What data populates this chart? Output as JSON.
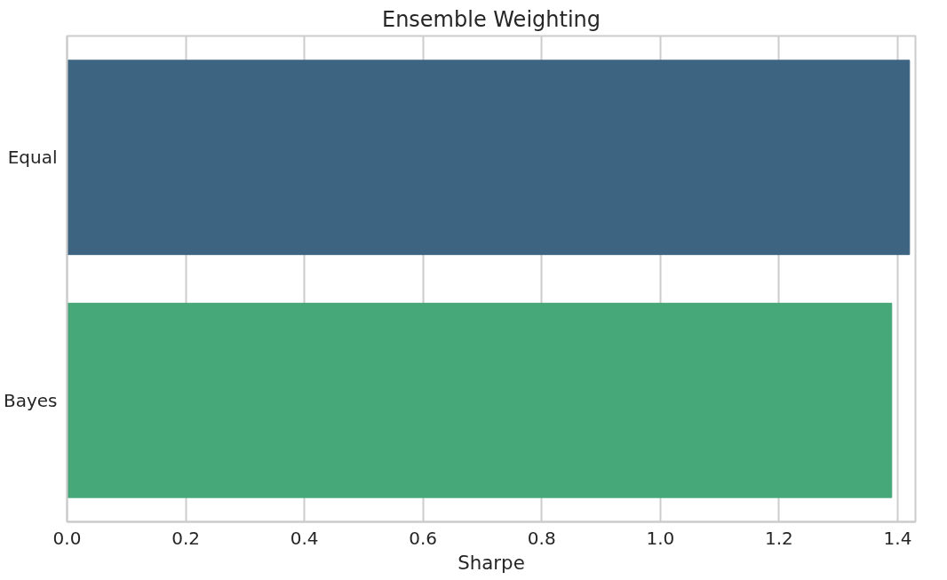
{
  "chart_data": {
    "type": "bar",
    "orientation": "horizontal",
    "title": "Ensemble Weighting",
    "xlabel": "Sharpe",
    "categories": [
      "Equal",
      "Bayes"
    ],
    "values": [
      1.42,
      1.39
    ],
    "colors": [
      "#3d6582",
      "#46a778"
    ],
    "xlim": [
      0,
      1.43
    ],
    "xticks": [
      {
        "value": 0,
        "label": "0.0"
      },
      {
        "value": 0.2,
        "label": "0.2"
      },
      {
        "value": 0.4,
        "label": "0.4"
      },
      {
        "value": 0.6,
        "label": "0.6"
      },
      {
        "value": 0.8,
        "label": "0.8"
      },
      {
        "value": 1.0,
        "label": "1.0"
      },
      {
        "value": 1.2,
        "label": "1.2"
      },
      {
        "value": 1.4,
        "label": "1.4"
      }
    ],
    "grid": "x"
  }
}
